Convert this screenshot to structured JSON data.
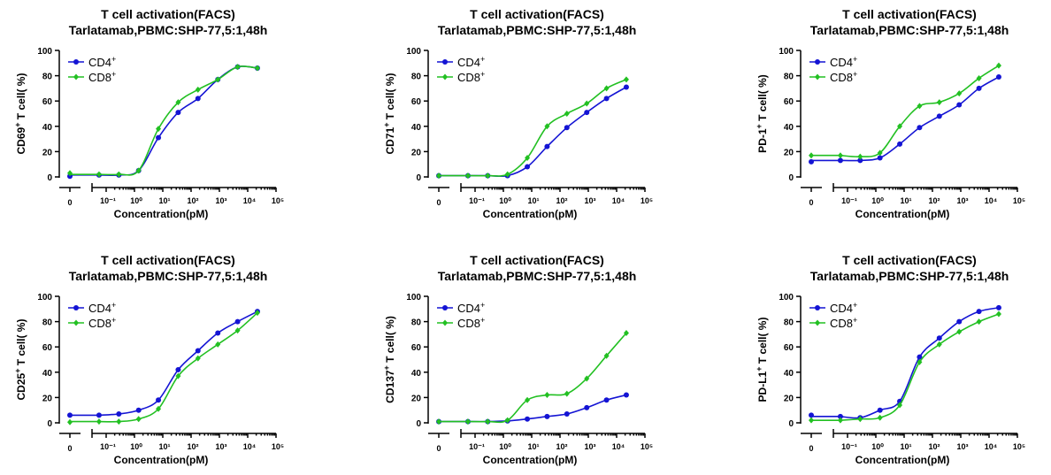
{
  "chart_data": [
    {
      "type": "line",
      "title": "T cell activation(FACS)",
      "subtitle": "Tarlatamab,PBMC:SHP-77,5:1,48h",
      "ylabel": "CD69+ T cell( %)",
      "xlabel": "Concentration(pM)",
      "ylim": [
        0,
        100
      ],
      "yticks": [
        0,
        20,
        40,
        60,
        80,
        100
      ],
      "xscale": "log",
      "xbreak_label": "0",
      "xticks": [
        "10⁻¹",
        "10⁰",
        "10¹",
        "10²",
        "10³",
        "10⁴",
        "10⁵"
      ],
      "x": [
        0,
        0.056,
        0.28,
        1.4,
        7,
        35,
        175,
        880,
        4400,
        22000
      ],
      "legend_placement": "top-left",
      "series": [
        {
          "name": "CD4+",
          "color": "#1414d4",
          "marker": "circle",
          "values": [
            0.5,
            1.5,
            1.5,
            5,
            31,
            51,
            62,
            77,
            87,
            86
          ]
        },
        {
          "name": "CD8+",
          "color": "#22c022",
          "marker": "diamond",
          "values": [
            3,
            2,
            2,
            5,
            38,
            59,
            69,
            77,
            87,
            86
          ]
        }
      ]
    },
    {
      "type": "line",
      "title": "T cell activation(FACS)",
      "subtitle": "Tarlatamab,PBMC:SHP-77,5:1,48h",
      "ylabel": "CD71+ T cell( %)",
      "xlabel": "Concentration(pM)",
      "ylim": [
        0,
        100
      ],
      "yticks": [
        0,
        20,
        40,
        60,
        80,
        100
      ],
      "xscale": "log",
      "xbreak_label": "0",
      "xticks": [
        "10⁻¹",
        "10⁰",
        "10¹",
        "10²",
        "10³",
        "10⁴",
        "10⁵"
      ],
      "x": [
        0,
        0.056,
        0.28,
        1.4,
        7,
        35,
        175,
        880,
        4400,
        22000
      ],
      "legend_placement": "top-left",
      "series": [
        {
          "name": "CD4+",
          "color": "#1414d4",
          "marker": "circle",
          "values": [
            1,
            1,
            1,
            1,
            8,
            24,
            39,
            51,
            62,
            71
          ]
        },
        {
          "name": "CD8+",
          "color": "#22c022",
          "marker": "diamond",
          "values": [
            1,
            1,
            1,
            2,
            15,
            40,
            50,
            58,
            70,
            77
          ]
        }
      ]
    },
    {
      "type": "line",
      "title": "T cell activation(FACS)",
      "subtitle": "Tarlatamab,PBMC:SHP-77,5:1,48h",
      "ylabel": "PD-1+ T cell( %)",
      "xlabel": "Concentration(pM)",
      "ylim": [
        0,
        100
      ],
      "yticks": [
        0,
        20,
        40,
        60,
        80,
        100
      ],
      "xscale": "log",
      "xbreak_label": "0",
      "xticks": [
        "10⁻¹",
        "10⁰",
        "10¹",
        "10²",
        "10³",
        "10⁴",
        "10⁵"
      ],
      "x": [
        0,
        0.056,
        0.28,
        1.4,
        7,
        35,
        175,
        880,
        4400,
        22000
      ],
      "legend_placement": "top-left",
      "series": [
        {
          "name": "CD4+",
          "color": "#1414d4",
          "marker": "circle",
          "values": [
            12,
            13,
            13,
            15,
            26,
            39,
            48,
            57,
            70,
            79
          ]
        },
        {
          "name": "CD8+",
          "color": "#22c022",
          "marker": "diamond",
          "values": [
            17,
            17,
            16,
            19,
            40,
            56,
            59,
            66,
            78,
            88
          ]
        }
      ]
    },
    {
      "type": "line",
      "title": "T cell activation(FACS)",
      "subtitle": "Tarlatamab,PBMC:SHP-77,5:1,48h",
      "ylabel": "CD25+ T cell( %)",
      "xlabel": "Concentration(pM)",
      "ylim": [
        0,
        100
      ],
      "yticks": [
        0,
        20,
        40,
        60,
        80,
        100
      ],
      "xscale": "log",
      "xbreak_label": "0",
      "xticks": [
        "10⁻¹",
        "10⁰",
        "10¹",
        "10²",
        "10³",
        "10⁴",
        "10⁵"
      ],
      "x": [
        0,
        0.056,
        0.28,
        1.4,
        7,
        35,
        175,
        880,
        4400,
        22000
      ],
      "legend_placement": "top-left",
      "series": [
        {
          "name": "CD4+",
          "color": "#1414d4",
          "marker": "circle",
          "values": [
            6,
            6,
            7,
            10,
            18,
            42,
            57,
            71,
            80,
            88
          ]
        },
        {
          "name": "CD8+",
          "color": "#22c022",
          "marker": "diamond",
          "values": [
            0.5,
            1,
            1,
            3,
            11,
            37,
            51,
            62,
            73,
            87
          ]
        }
      ]
    },
    {
      "type": "line",
      "title": "T cell activation(FACS)",
      "subtitle": "Tarlatamab,PBMC:SHP-77,5:1,48h",
      "ylabel": "CD137+ T cell( %)",
      "xlabel": "Concentration(pM)",
      "ylim": [
        0,
        100
      ],
      "yticks": [
        0,
        20,
        40,
        60,
        80,
        100
      ],
      "xscale": "log",
      "xbreak_label": "0",
      "xticks": [
        "10⁻¹",
        "10⁰",
        "10¹",
        "10²",
        "10³",
        "10⁴",
        "10⁵"
      ],
      "x": [
        0,
        0.056,
        0.28,
        1.4,
        7,
        35,
        175,
        880,
        4400,
        22000
      ],
      "legend_placement": "top-left",
      "series": [
        {
          "name": "CD4+",
          "color": "#1414d4",
          "marker": "circle",
          "values": [
            1,
            1,
            1,
            1.5,
            3,
            5,
            7,
            12,
            18,
            22
          ]
        },
        {
          "name": "CD8+",
          "color": "#22c022",
          "marker": "diamond",
          "values": [
            1,
            1,
            1,
            2,
            18,
            22,
            23,
            35,
            53,
            71
          ]
        }
      ]
    },
    {
      "type": "line",
      "title": "T cell activation(FACS)",
      "subtitle": "Tarlatamab,PBMC:SHP-77,5:1,48h",
      "ylabel": "PD-L1+ T cell( %)",
      "xlabel": "Concentration(pM)",
      "ylim": [
        0,
        100
      ],
      "yticks": [
        0,
        20,
        40,
        60,
        80,
        100
      ],
      "xscale": "log",
      "xbreak_label": "0",
      "xticks": [
        "10⁻¹",
        "10⁰",
        "10¹",
        "10²",
        "10³",
        "10⁴",
        "10⁵"
      ],
      "x": [
        0,
        0.056,
        0.28,
        1.4,
        7,
        35,
        175,
        880,
        4400,
        22000
      ],
      "legend_placement": "top-left",
      "series": [
        {
          "name": "CD4+",
          "color": "#1414d4",
          "marker": "circle",
          "values": [
            6,
            5,
            4,
            10,
            17,
            52,
            67,
            80,
            88,
            91
          ]
        },
        {
          "name": "CD8+",
          "color": "#22c022",
          "marker": "diamond",
          "values": [
            2,
            2,
            3,
            4,
            14,
            48,
            62,
            72,
            80,
            86
          ]
        }
      ]
    }
  ]
}
